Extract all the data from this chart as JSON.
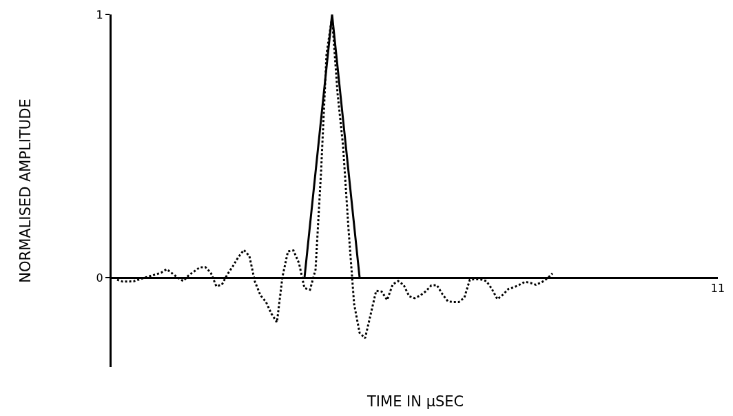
{
  "chart_data": {
    "type": "line",
    "xlabel": "TIME IN µSEC",
    "ylabel": "NORMALISED AMPLITUDE",
    "categories": [
      null,
      null,
      null,
      null,
      null,
      null,
      null,
      null,
      null,
      null,
      null,
      null,
      null,
      null,
      null,
      null,
      null,
      null,
      null,
      null,
      null,
      null,
      null,
      null,
      null,
      null,
      null,
      null,
      null,
      null,
      null,
      null,
      null,
      null,
      null,
      null,
      null,
      null,
      null,
      null,
      null,
      null,
      null,
      null,
      null,
      null,
      null,
      null,
      null,
      null,
      null,
      null,
      null,
      null,
      null,
      null,
      null,
      null,
      null,
      null,
      null,
      null,
      null,
      null,
      null,
      null,
      null,
      null,
      null,
      null,
      null,
      null,
      null,
      null,
      null,
      null,
      null,
      null,
      null,
      null,
      null,
      null,
      null,
      null,
      null,
      null,
      null,
      null,
      null,
      null,
      null,
      null,
      null,
      null,
      null,
      null,
      null,
      null,
      null,
      null,
      null,
      null,
      null,
      null,
      null,
      null,
      null,
      null,
      null,
      null,
      "11"
    ],
    "ylim": [
      -0.34,
      1
    ],
    "yticks": [
      0,
      1
    ],
    "marker": "none",
    "series": [
      {
        "color": "#000000",
        "line_style": "solid",
        "values": [
          null,
          null,
          null,
          null,
          null,
          null,
          null,
          null,
          null,
          null,
          null,
          null,
          null,
          null,
          null,
          null,
          null,
          null,
          null,
          null,
          null,
          null,
          null,
          null,
          null,
          null,
          null,
          null,
          null,
          null,
          null,
          null,
          null,
          null,
          null,
          0,
          0.2,
          0.4,
          0.6,
          0.8,
          1,
          0.8,
          0.6,
          0.4,
          0.2,
          0,
          null,
          null,
          null,
          null,
          null,
          null,
          null,
          null,
          null,
          null,
          null,
          null,
          null,
          null,
          null,
          null,
          null,
          null,
          null,
          null,
          null,
          null,
          null,
          null,
          null,
          null,
          null,
          null,
          null,
          null,
          null,
          null,
          null,
          null,
          null,
          null,
          null,
          null,
          null,
          null,
          null,
          null,
          null,
          null,
          null,
          null,
          null,
          null,
          null,
          null,
          null,
          null,
          null,
          null,
          null,
          null,
          null,
          null,
          null,
          null,
          null,
          null,
          null,
          null,
          null
        ]
      },
      {
        "color": "#000000",
        "line_style": "dotted",
        "values": [
          null,
          -0.008,
          -0.015,
          -0.015,
          -0.014,
          -0.007,
          0.0,
          0.006,
          0.012,
          0.019,
          0.032,
          0.016,
          0.0,
          -0.013,
          0.009,
          0.024,
          0.039,
          0.04,
          0.019,
          -0.033,
          -0.027,
          0.012,
          0.043,
          0.078,
          0.105,
          0.082,
          -0.015,
          -0.067,
          -0.092,
          -0.137,
          -0.17,
          0.003,
          0.1,
          0.103,
          0.055,
          -0.04,
          -0.046,
          0.03,
          0.4,
          0.85,
          0.99,
          0.7,
          0.5,
          0.18,
          -0.1,
          -0.21,
          -0.23,
          -0.14,
          -0.05,
          -0.053,
          -0.085,
          -0.026,
          -0.013,
          -0.028,
          -0.071,
          -0.078,
          -0.068,
          -0.052,
          -0.03,
          -0.028,
          -0.062,
          -0.09,
          -0.093,
          -0.093,
          -0.076,
          -0.008,
          -0.006,
          -0.007,
          -0.013,
          -0.043,
          -0.082,
          -0.065,
          -0.043,
          -0.037,
          -0.027,
          -0.016,
          -0.02,
          -0.027,
          -0.018,
          -0.004,
          0.016,
          null,
          null,
          null,
          null,
          null,
          null,
          null,
          null,
          null,
          null,
          null,
          null,
          null,
          null,
          null,
          null,
          null,
          null,
          null,
          null,
          null,
          null,
          null,
          null,
          null,
          null,
          null,
          null,
          null,
          null
        ]
      }
    ]
  }
}
